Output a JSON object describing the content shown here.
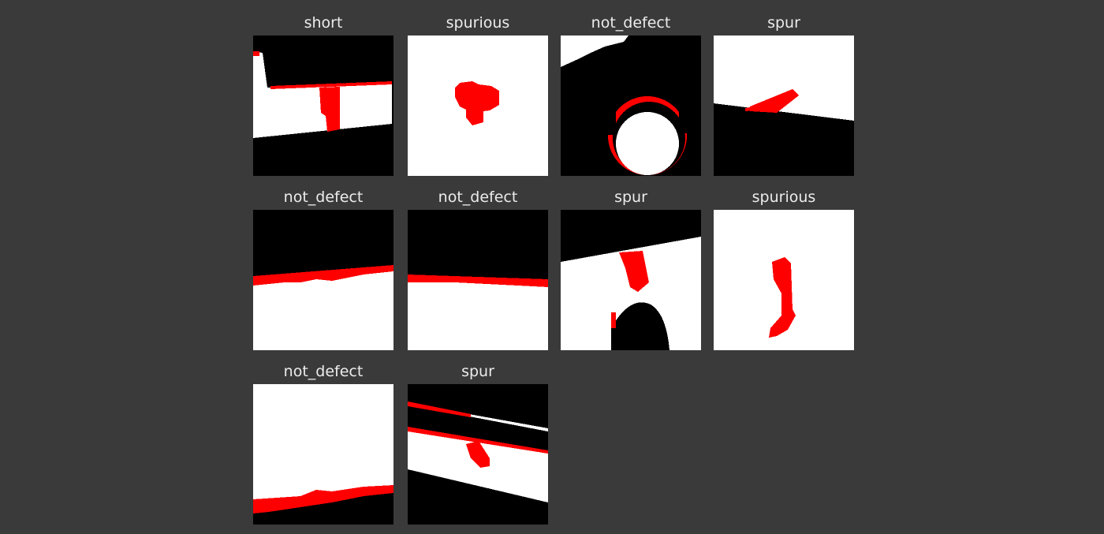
{
  "tiles": [
    {
      "label": "short"
    },
    {
      "label": "spurious"
    },
    {
      "label": "not_defect"
    },
    {
      "label": "spur"
    },
    {
      "label": "not_defect"
    },
    {
      "label": "not_defect"
    },
    {
      "label": "spur"
    },
    {
      "label": "spurious"
    },
    {
      "label": "not_defect"
    },
    {
      "label": "spur"
    }
  ],
  "colors": {
    "background": "#3a3a3a",
    "defect": "#ff0000",
    "copper": "#ffffff",
    "substrate": "#000000",
    "label": "#ececec"
  }
}
